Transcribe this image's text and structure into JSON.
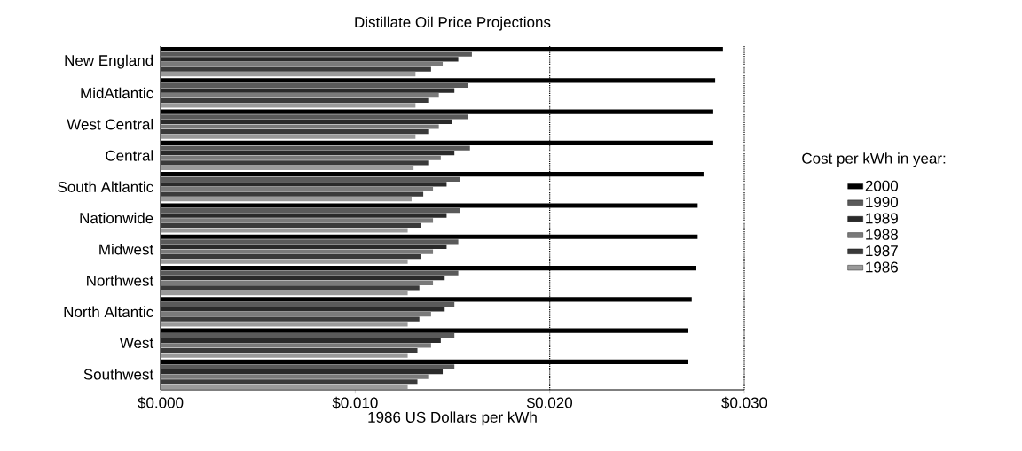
{
  "chart_data": {
    "type": "bar",
    "orientation": "horizontal",
    "title": "Distillate Oil Price Projections",
    "xlabel": "1986 US Dollars per kWh",
    "legend_title": "Cost per kWh in year:",
    "legend": "right",
    "categories": [
      "New England",
      "MidAtlantic",
      "West Central",
      "Central",
      "South Altlantic",
      "Nationwide",
      "Midwest",
      "Northwest",
      "North Altantic",
      "West",
      "Southwest"
    ],
    "series": [
      {
        "name": "2000",
        "color": "#000000",
        "values": [
          0.0289,
          0.0285,
          0.0284,
          0.0284,
          0.0279,
          0.0276,
          0.0276,
          0.0275,
          0.0273,
          0.0271,
          0.0271
        ]
      },
      {
        "name": "1990",
        "color": "#5a5a5a",
        "values": [
          0.016,
          0.0158,
          0.0158,
          0.0159,
          0.0154,
          0.0154,
          0.0153,
          0.0153,
          0.0151,
          0.0151,
          0.0151
        ]
      },
      {
        "name": "1989",
        "color": "#2a2a2a",
        "values": [
          0.0153,
          0.0151,
          0.015,
          0.0151,
          0.0147,
          0.0147,
          0.0147,
          0.0146,
          0.0146,
          0.0144,
          0.0145
        ]
      },
      {
        "name": "1988",
        "color": "#7a7a7a",
        "values": [
          0.0145,
          0.0143,
          0.0143,
          0.0144,
          0.014,
          0.014,
          0.014,
          0.014,
          0.0139,
          0.0139,
          0.0138
        ]
      },
      {
        "name": "1987",
        "color": "#3a3a3a",
        "values": [
          0.0139,
          0.0138,
          0.0138,
          0.0138,
          0.0135,
          0.0134,
          0.0134,
          0.0133,
          0.0133,
          0.0132,
          0.0132
        ]
      },
      {
        "name": "1986",
        "color": "#9a9a9a",
        "values": [
          0.0131,
          0.0131,
          0.0131,
          0.013,
          0.0129,
          0.0127,
          0.0127,
          0.0127,
          0.0127,
          0.0127,
          0.0127
        ]
      }
    ],
    "xlim": [
      0,
      0.03
    ],
    "xticks": [
      {
        "value": 0,
        "label": "$0.000"
      },
      {
        "value": 0.01,
        "label": "$0.010"
      },
      {
        "value": 0.02,
        "label": "$0.020"
      },
      {
        "value": 0.03,
        "label": "$0.030"
      }
    ],
    "ref_lines": [
      {
        "axis": "x",
        "value": 0.02,
        "color": "#000000",
        "line_style": "dotted"
      }
    ]
  }
}
